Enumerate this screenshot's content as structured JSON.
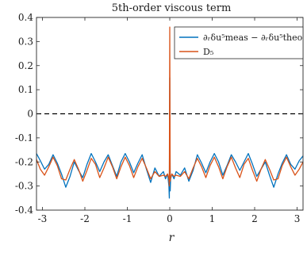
{
  "chart_data": {
    "type": "line",
    "title": "5th-order viscous term",
    "xlabel": "r",
    "ylabel": "",
    "xlim": [
      -3.14,
      3.14
    ],
    "ylim": [
      -0.4,
      0.4
    ],
    "xticks": [
      -3,
      -2,
      -1,
      0,
      1,
      2,
      3
    ],
    "xtick_labels": [
      "-3",
      "-2",
      "-1",
      "0",
      "1",
      "2",
      "3"
    ],
    "yticks": [
      -0.4,
      -0.3,
      -0.2,
      -0.1,
      0,
      0.1,
      0.2,
      0.3,
      0.4
    ],
    "ytick_labels": [
      "-0.4",
      "-0.3",
      "-0.2",
      "-0.1",
      "0",
      "0.1",
      "0.2",
      "0.3",
      "0.4"
    ],
    "grid": false,
    "legend_position": "top-right",
    "reference_line": {
      "y": 0,
      "style": "dashed",
      "color": "#000000"
    },
    "series": [
      {
        "name": "∂ᵣδu⁵meas − ∂ᵣδu⁵theo",
        "color": "#0072BD",
        "x": [
          -3.14,
          -3.05,
          -2.95,
          -2.85,
          -2.75,
          -2.65,
          -2.55,
          -2.45,
          -2.35,
          -2.25,
          -2.15,
          -2.05,
          -1.95,
          -1.85,
          -1.75,
          -1.65,
          -1.55,
          -1.45,
          -1.35,
          -1.25,
          -1.15,
          -1.05,
          -0.95,
          -0.85,
          -0.75,
          -0.65,
          -0.55,
          -0.45,
          -0.35,
          -0.25,
          -0.15,
          -0.1,
          -0.05,
          -0.02,
          -0.01,
          0,
          0.01,
          0.02,
          0.05,
          0.1,
          0.15,
          0.25,
          0.35,
          0.45,
          0.55,
          0.65,
          0.75,
          0.85,
          0.95,
          1.05,
          1.15,
          1.25,
          1.35,
          1.45,
          1.55,
          1.65,
          1.75,
          1.85,
          1.95,
          2.05,
          2.15,
          2.25,
          2.35,
          2.45,
          2.55,
          2.65,
          2.75,
          2.85,
          2.95,
          3.05,
          3.14
        ],
        "y": [
          -0.165,
          -0.195,
          -0.23,
          -0.21,
          -0.17,
          -0.205,
          -0.25,
          -0.305,
          -0.26,
          -0.2,
          -0.235,
          -0.265,
          -0.21,
          -0.165,
          -0.2,
          -0.24,
          -0.2,
          -0.17,
          -0.215,
          -0.26,
          -0.2,
          -0.165,
          -0.2,
          -0.245,
          -0.205,
          -0.17,
          -0.23,
          -0.285,
          -0.225,
          -0.26,
          -0.24,
          -0.27,
          -0.25,
          -0.3,
          -0.35,
          0.15,
          -0.32,
          -0.27,
          -0.25,
          -0.27,
          -0.24,
          -0.255,
          -0.225,
          -0.28,
          -0.235,
          -0.17,
          -0.205,
          -0.245,
          -0.2,
          -0.165,
          -0.2,
          -0.255,
          -0.215,
          -0.17,
          -0.2,
          -0.235,
          -0.2,
          -0.165,
          -0.21,
          -0.26,
          -0.23,
          -0.2,
          -0.255,
          -0.305,
          -0.25,
          -0.205,
          -0.17,
          -0.21,
          -0.23,
          -0.195,
          -0.175
        ]
      },
      {
        "name": "D₅",
        "color": "#D95319",
        "x": [
          -3.14,
          -3.05,
          -2.95,
          -2.85,
          -2.75,
          -2.65,
          -2.55,
          -2.45,
          -2.35,
          -2.25,
          -2.15,
          -2.05,
          -1.95,
          -1.85,
          -1.75,
          -1.65,
          -1.55,
          -1.45,
          -1.35,
          -1.25,
          -1.15,
          -1.05,
          -0.95,
          -0.85,
          -0.75,
          -0.65,
          -0.55,
          -0.45,
          -0.35,
          -0.25,
          -0.15,
          -0.1,
          -0.05,
          -0.02,
          -0.01,
          0,
          0.01,
          0.02,
          0.05,
          0.1,
          0.15,
          0.25,
          0.35,
          0.45,
          0.55,
          0.65,
          0.75,
          0.85,
          0.95,
          1.05,
          1.15,
          1.25,
          1.35,
          1.45,
          1.55,
          1.65,
          1.75,
          1.85,
          1.95,
          2.05,
          2.15,
          2.25,
          2.35,
          2.45,
          2.55,
          2.65,
          2.75,
          2.85,
          2.95,
          3.05,
          3.14
        ],
        "y": [
          -0.19,
          -0.23,
          -0.255,
          -0.22,
          -0.18,
          -0.215,
          -0.27,
          -0.275,
          -0.23,
          -0.19,
          -0.23,
          -0.28,
          -0.235,
          -0.185,
          -0.21,
          -0.265,
          -0.225,
          -0.18,
          -0.22,
          -0.27,
          -0.22,
          -0.18,
          -0.215,
          -0.265,
          -0.22,
          -0.185,
          -0.225,
          -0.27,
          -0.24,
          -0.26,
          -0.255,
          -0.26,
          -0.25,
          -0.27,
          -0.3,
          0.36,
          -0.28,
          -0.265,
          -0.25,
          -0.26,
          -0.255,
          -0.26,
          -0.24,
          -0.27,
          -0.225,
          -0.185,
          -0.22,
          -0.265,
          -0.215,
          -0.18,
          -0.22,
          -0.27,
          -0.22,
          -0.18,
          -0.225,
          -0.265,
          -0.21,
          -0.185,
          -0.235,
          -0.28,
          -0.23,
          -0.19,
          -0.23,
          -0.275,
          -0.27,
          -0.215,
          -0.18,
          -0.22,
          -0.255,
          -0.23,
          -0.2
        ]
      }
    ]
  }
}
